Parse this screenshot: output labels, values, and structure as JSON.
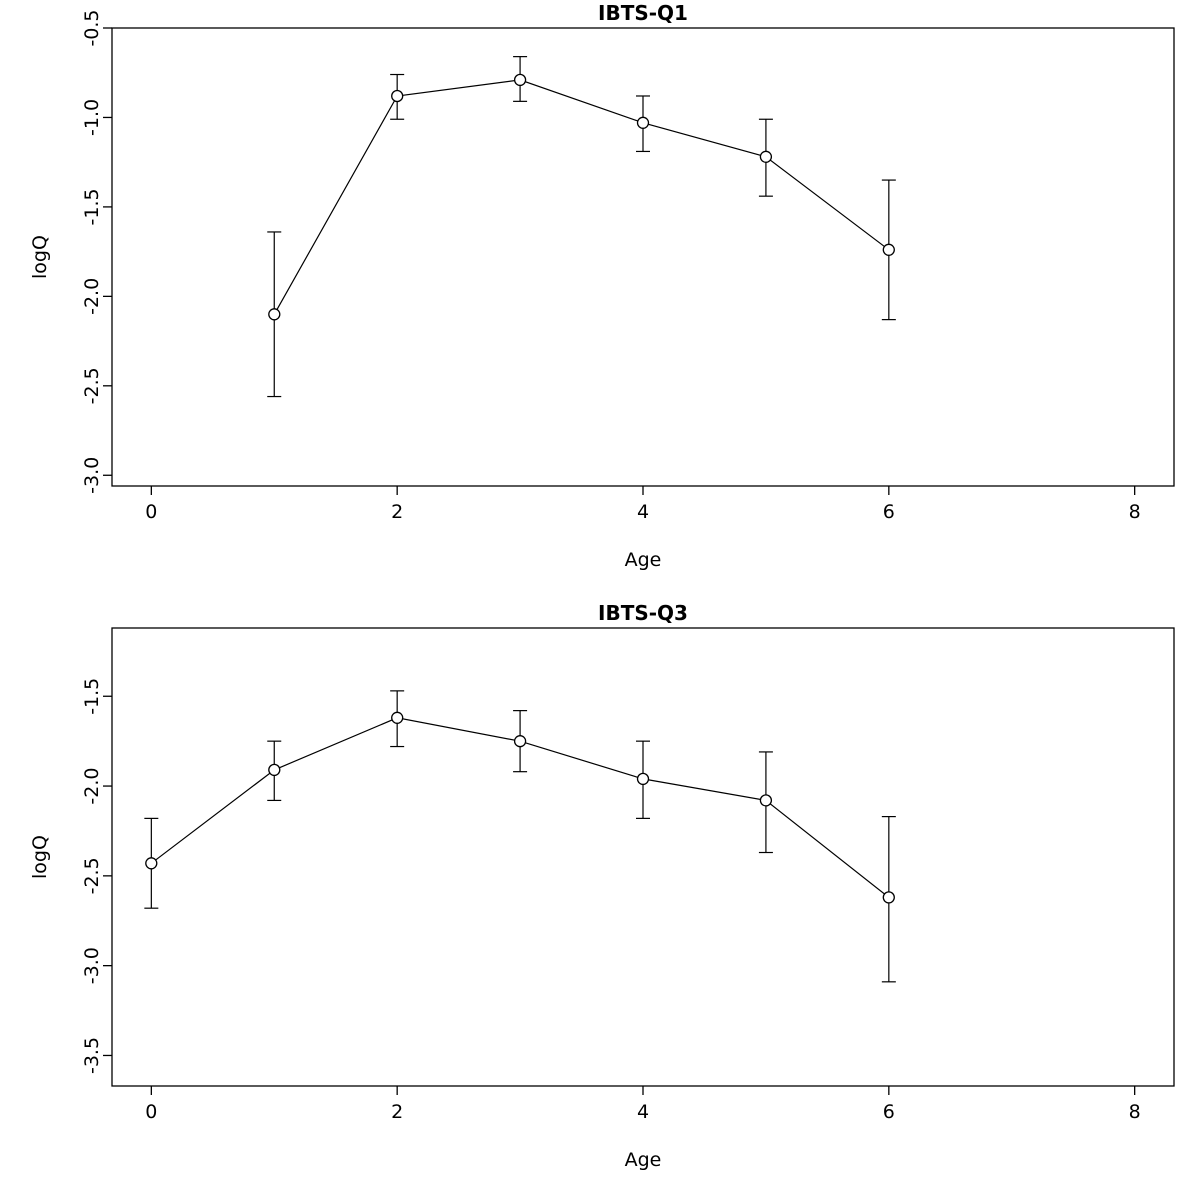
{
  "page": {
    "background": "#ffffff",
    "foreground": "#000000"
  },
  "chart_data": [
    {
      "type": "scatter",
      "title": "IBTS-Q1",
      "xlabel": "Age",
      "ylabel": "logQ",
      "x": [
        1,
        2,
        3,
        4,
        5,
        6
      ],
      "y": [
        -2.1,
        -0.88,
        -0.79,
        -1.03,
        -1.22,
        -1.74
      ],
      "err_low": [
        -2.56,
        -1.01,
        -0.91,
        -1.19,
        -1.44,
        -2.13
      ],
      "err_high": [
        -1.64,
        -0.76,
        -0.66,
        -0.88,
        -1.01,
        -1.35
      ],
      "xlim": [
        -0.32,
        8.32
      ],
      "ylim": [
        -3.06,
        -0.5
      ],
      "xticks": {
        "values": [
          0,
          2,
          4,
          6,
          8
        ],
        "labels": [
          "0",
          "2",
          "4",
          "6",
          "8"
        ]
      },
      "yticks": {
        "values": [
          -0.5,
          -1.0,
          -1.5,
          -2.0,
          -2.5,
          -3.0
        ],
        "labels": [
          "-0.5",
          "-1.0",
          "-1.5",
          "-2.0",
          "-2.5",
          "-3.0"
        ]
      },
      "grid": false,
      "legend": "none",
      "color": "#000000",
      "point_style": "open-circle",
      "error_caps": true
    },
    {
      "type": "scatter",
      "title": "IBTS-Q3",
      "xlabel": "Age",
      "ylabel": "logQ",
      "x": [
        0,
        1,
        2,
        3,
        4,
        5,
        6
      ],
      "y": [
        -2.43,
        -1.91,
        -1.62,
        -1.75,
        -1.96,
        -2.08,
        -2.62
      ],
      "err_low": [
        -2.68,
        -2.08,
        -1.78,
        -1.92,
        -2.18,
        -2.37,
        -3.09
      ],
      "err_high": [
        -2.18,
        -1.75,
        -1.47,
        -1.58,
        -1.75,
        -1.81,
        -2.17
      ],
      "xlim": [
        -0.32,
        8.32
      ],
      "ylim": [
        -3.67,
        -1.12
      ],
      "xticks": {
        "values": [
          0,
          2,
          4,
          6,
          8
        ],
        "labels": [
          "0",
          "2",
          "4",
          "6",
          "8"
        ]
      },
      "yticks": {
        "values": [
          -1.5,
          -2.0,
          -2.5,
          -3.0,
          -3.5
        ],
        "labels": [
          "-1.5",
          "-2.0",
          "-2.5",
          "-3.0",
          "-3.5"
        ]
      },
      "grid": false,
      "legend": "none",
      "color": "#000000",
      "point_style": "open-circle",
      "error_caps": true
    }
  ]
}
